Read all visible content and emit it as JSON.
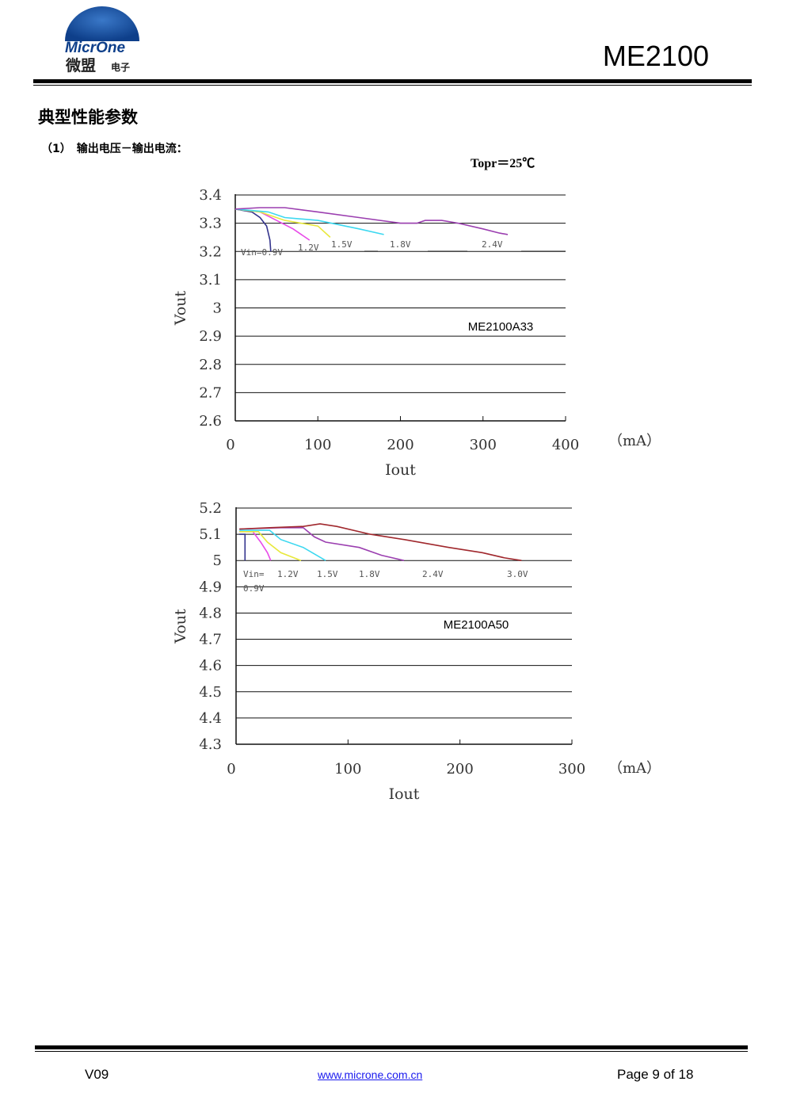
{
  "header": {
    "logo_text_en": "MicrOne",
    "logo_text_cn_main": "微盟",
    "logo_text_cn_sub": "电子",
    "part_number": "ME2100"
  },
  "section_title": "典型性能参数",
  "subsection_title": "（1）　输出电压－输出电流：",
  "temp_condition": "Topr＝25℃",
  "colors": {
    "vin_0_9": "#33338c",
    "vin_1_2": "#e84be8",
    "vin_1_5": "#e8e83c",
    "vin_1_8": "#3cd8f0",
    "vin_2_4": "#9b3fb0",
    "vin_3_0": "#a0282d"
  },
  "chart_data": [
    {
      "type": "line",
      "title": "ME2100A33",
      "xlabel": "Iout",
      "ylabel": "Vout",
      "unit": "（mA）",
      "xlim": [
        0,
        400
      ],
      "ylim": [
        2.6,
        3.4
      ],
      "x_ticks": [
        0,
        100,
        200,
        300,
        400
      ],
      "x_tick_labels": [
        "0",
        "100",
        "200",
        "300",
        "400"
      ],
      "y_ticks": [
        2.6,
        2.7,
        2.8,
        2.9,
        3.0,
        3.1,
        3.2,
        3.3,
        3.4
      ],
      "y_tick_labels": [
        "2.6",
        "2.7",
        "2.8",
        "2.9",
        "3",
        "3.1",
        "3.2",
        "3.3",
        "3.4"
      ],
      "grid": "horizontal",
      "series": [
        {
          "name": "Vin=0.9V",
          "color": "vin_0_9",
          "points": [
            [
              0,
              3.35
            ],
            [
              20,
              3.34
            ],
            [
              30,
              3.32
            ],
            [
              38,
              3.29
            ],
            [
              42,
              3.24
            ],
            [
              43,
              3.2
            ]
          ]
        },
        {
          "name": "1.2V",
          "color": "vin_1_2",
          "points": [
            [
              0,
              3.35
            ],
            [
              30,
              3.34
            ],
            [
              50,
              3.31
            ],
            [
              70,
              3.28
            ],
            [
              90,
              3.24
            ]
          ]
        },
        {
          "name": "1.5V",
          "color": "vin_1_5",
          "points": [
            [
              0,
              3.35
            ],
            [
              30,
              3.34
            ],
            [
              60,
              3.31
            ],
            [
              100,
              3.29
            ],
            [
              115,
              3.25
            ]
          ]
        },
        {
          "name": "1.8V",
          "color": "vin_1_8",
          "points": [
            [
              0,
              3.35
            ],
            [
              40,
              3.34
            ],
            [
              60,
              3.32
            ],
            [
              100,
              3.31
            ],
            [
              150,
              3.28
            ],
            [
              180,
              3.26
            ]
          ]
        },
        {
          "name": "2.4V",
          "color": "vin_2_4",
          "points": [
            [
              0,
              3.35
            ],
            [
              30,
              3.355
            ],
            [
              60,
              3.355
            ],
            [
              100,
              3.34
            ],
            [
              150,
              3.32
            ],
            [
              200,
              3.3
            ],
            [
              220,
              3.3
            ],
            [
              230,
              3.31
            ],
            [
              250,
              3.31
            ],
            [
              270,
              3.3
            ],
            [
              300,
              3.28
            ],
            [
              320,
              3.265
            ],
            [
              330,
              3.26
            ]
          ]
        }
      ],
      "series_labels": [
        "Vin=0.9V",
        "1.2V",
        "1.5V",
        "1.8V",
        "2.4V"
      ]
    },
    {
      "type": "line",
      "title": "ME2100A50",
      "xlabel": "Iout",
      "ylabel": "Vout",
      "unit": "（mA）",
      "xlim": [
        0,
        300
      ],
      "ylim": [
        4.3,
        5.2
      ],
      "x_ticks": [
        0,
        100,
        200,
        300
      ],
      "x_tick_labels": [
        "0",
        "100",
        "200",
        "300"
      ],
      "y_ticks": [
        4.3,
        4.4,
        4.5,
        4.6,
        4.7,
        4.8,
        4.9,
        5.0,
        5.1,
        5.2
      ],
      "y_tick_labels": [
        "4.3",
        "4.4",
        "4.5",
        "4.6",
        "4.7",
        "4.8",
        "4.9",
        "5",
        "5.1",
        "5.2"
      ],
      "grid": "horizontal",
      "series": [
        {
          "name": "0.9V",
          "color": "vin_0_9",
          "points": [
            [
              3,
              5.1
            ],
            [
              8,
              5.1
            ],
            [
              8,
              5.05
            ],
            [
              8,
              5.0
            ]
          ]
        },
        {
          "name": "1.2V",
          "color": "vin_1_2",
          "points": [
            [
              3,
              5.11
            ],
            [
              15,
              5.11
            ],
            [
              22,
              5.07
            ],
            [
              28,
              5.03
            ],
            [
              31,
              5.0
            ]
          ]
        },
        {
          "name": "1.5V",
          "color": "vin_1_5",
          "points": [
            [
              3,
              5.11
            ],
            [
              20,
              5.11
            ],
            [
              28,
              5.07
            ],
            [
              40,
              5.03
            ],
            [
              58,
              5.0
            ]
          ]
        },
        {
          "name": "1.8V",
          "color": "vin_1_8",
          "points": [
            [
              3,
              5.115
            ],
            [
              30,
              5.115
            ],
            [
              40,
              5.08
            ],
            [
              60,
              5.05
            ],
            [
              80,
              5.0
            ]
          ]
        },
        {
          "name": "2.4V",
          "color": "vin_2_4",
          "points": [
            [
              3,
              5.12
            ],
            [
              40,
              5.125
            ],
            [
              60,
              5.125
            ],
            [
              70,
              5.09
            ],
            [
              80,
              5.07
            ],
            [
              110,
              5.05
            ],
            [
              130,
              5.02
            ],
            [
              150,
              5.0
            ]
          ]
        },
        {
          "name": "3.0V",
          "color": "vin_3_0",
          "points": [
            [
              3,
              5.12
            ],
            [
              30,
              5.125
            ],
            [
              60,
              5.13
            ],
            [
              75,
              5.14
            ],
            [
              90,
              5.13
            ],
            [
              120,
              5.1
            ],
            [
              150,
              5.08
            ],
            [
              190,
              5.05
            ],
            [
              220,
              5.03
            ],
            [
              240,
              5.01
            ],
            [
              255,
              5.0
            ]
          ]
        }
      ],
      "series_labels": [
        "Vin=",
        "1.2V",
        "1.5V",
        "1.8V",
        "2.4V",
        "3.0V",
        "0.9V"
      ]
    }
  ],
  "footer": {
    "version": "V09",
    "url": "www.microne.com.cn",
    "page": "Page 9 of 18"
  }
}
